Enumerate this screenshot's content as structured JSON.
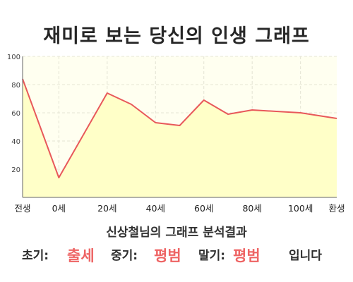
{
  "header": {
    "title": "재미로 보는 당신의 인생 그래프"
  },
  "chart_data": {
    "type": "area",
    "title": "재미로 보는 당신의 인생 그래프",
    "categories": [
      "전생",
      "0세",
      "20세",
      "40세",
      "60세",
      "80세",
      "100세",
      "환생"
    ],
    "x": [
      -15,
      0,
      20,
      40,
      60,
      80,
      100,
      115
    ],
    "y_ticks": [
      20,
      40,
      60,
      80,
      100
    ],
    "ylim": [
      0,
      100
    ],
    "xlim": [
      -15,
      115
    ],
    "grid": true,
    "legend": "none",
    "series": [
      {
        "x": [
          -15,
          0,
          20,
          30,
          40,
          50,
          60,
          70,
          80,
          90,
          100,
          115
        ],
        "values": [
          84,
          14,
          74,
          66,
          53,
          51,
          69,
          59,
          62,
          61,
          60,
          56
        ]
      }
    ],
    "colors": {
      "line": "#e8585a",
      "area": "#ffffc8",
      "plot_background": "#fffff0",
      "grid": "#e4e4d4",
      "axis": "#666666"
    }
  },
  "result": {
    "heading": "신상철님의 그래프 분석결과",
    "early_label": "초기:",
    "early_value": "출세",
    "middle_label": "중기:",
    "middle_value": "평범",
    "late_label": "말기:",
    "late_value": "평범",
    "suffix": "입니다"
  }
}
